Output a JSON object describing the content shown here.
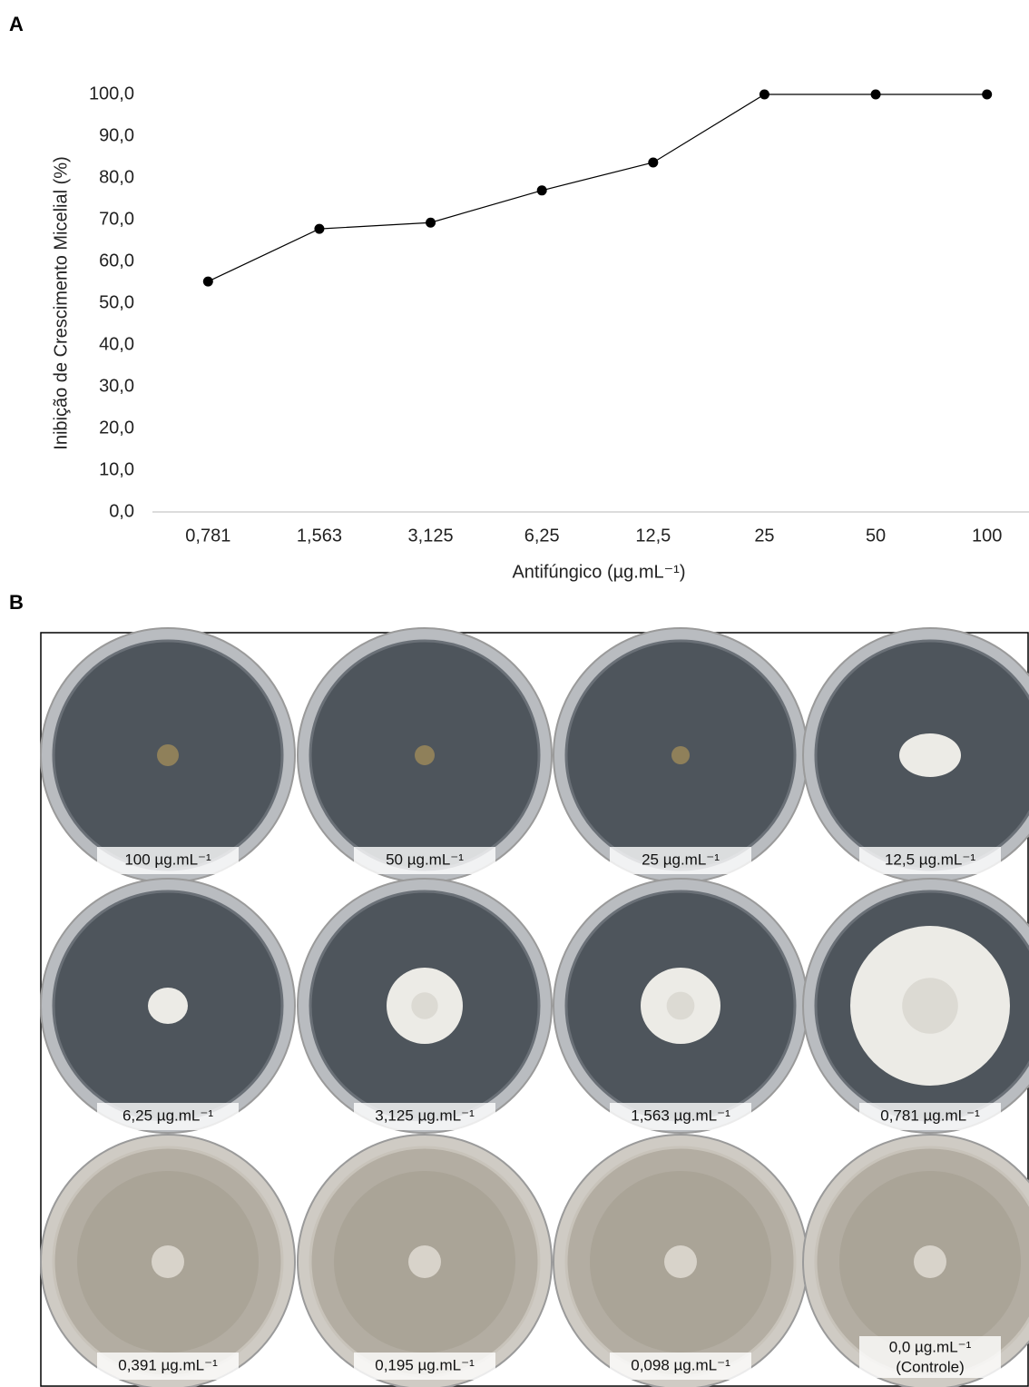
{
  "panel_a_label": "A",
  "chart_data": {
    "type": "line",
    "ylabel": "Inibição de Crescimento Micelial (%)",
    "xlabel": "Antifúngico (µg.mL⁻¹)",
    "categories": [
      "0,781",
      "1,563",
      "3,125",
      "6,25",
      "12,5",
      "25",
      "50",
      "100"
    ],
    "values": [
      55.2,
      67.8,
      69.3,
      77.0,
      83.7,
      100,
      100,
      100
    ],
    "color": "#000000",
    "ylim": [
      0,
      100
    ],
    "yticks": [
      {
        "value": 0,
        "label": "0,0"
      },
      {
        "value": 10,
        "label": "10,0"
      },
      {
        "value": 20,
        "label": "20,0"
      },
      {
        "value": 30,
        "label": "30,0"
      },
      {
        "value": 40,
        "label": "40,0"
      },
      {
        "value": 50,
        "label": "50,0"
      },
      {
        "value": 60,
        "label": "60,0"
      },
      {
        "value": 70,
        "label": "70,0"
      },
      {
        "value": 80,
        "label": "80,0"
      },
      {
        "value": 90,
        "label": "90,0"
      },
      {
        "value": 100,
        "label": "100,0"
      }
    ],
    "grid": false
  },
  "panel_b_label": "B",
  "plates": [
    {
      "label": "100 µg.mL⁻¹"
    },
    {
      "label": "50 µg.mL⁻¹"
    },
    {
      "label": "25 µg.mL⁻¹"
    },
    {
      "label": "12,5 µg.mL⁻¹"
    },
    {
      "label": "6,25 µg.mL⁻¹"
    },
    {
      "label": "3,125 µg.mL⁻¹"
    },
    {
      "label": "1,563 µg.mL⁻¹"
    },
    {
      "label": "0,781 µg.mL⁻¹"
    },
    {
      "label": "0,391 µg.mL⁻¹"
    },
    {
      "label": "0,195 µg.mL⁻¹"
    },
    {
      "label": "0,098 µg.mL⁻¹"
    },
    {
      "label": "0,0 µg.mL⁻¹",
      "note": "(Controle)"
    }
  ]
}
